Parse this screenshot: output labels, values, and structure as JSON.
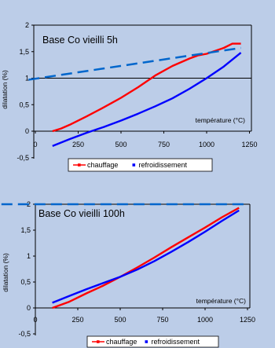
{
  "colors": {
    "background": "#bccde8",
    "heating": "#ff0000",
    "cooling": "#0000ff",
    "trend": "#0066cc",
    "axis": "#000000"
  },
  "chart_data": [
    {
      "type": "line",
      "title": "Base Co vieilli 5h",
      "xlabel": "température (°C)",
      "ylabel": "dilatation (%)",
      "xlim": [
        0,
        1300
      ],
      "ylim": [
        -0.5,
        2
      ],
      "xticks": [
        "0",
        "250",
        "500",
        "750",
        "1000",
        "1250"
      ],
      "yticks": [
        "-0,5",
        "0",
        "0,5",
        "1",
        "1,5",
        "2"
      ],
      "ref_line": 1,
      "legend": [
        "chauffage",
        "refroidissement"
      ],
      "legend_position": "bottom-center",
      "series": [
        {
          "name": "chauffage",
          "x": [
            100,
            150,
            200,
            300,
            400,
            500,
            600,
            700,
            800,
            900,
            950,
            1000,
            1100,
            1150,
            1200
          ],
          "y": [
            0.0,
            0.05,
            0.12,
            0.28,
            0.45,
            0.63,
            0.83,
            1.05,
            1.23,
            1.37,
            1.43,
            1.46,
            1.57,
            1.65,
            1.65
          ]
        },
        {
          "name": "refroidissement",
          "x": [
            100,
            200,
            300,
            400,
            500,
            600,
            700,
            800,
            900,
            1000,
            1100,
            1200
          ],
          "y": [
            -0.28,
            -0.15,
            -0.03,
            0.08,
            0.2,
            0.33,
            0.47,
            0.62,
            0.8,
            1.0,
            1.22,
            1.48
          ]
        },
        {
          "name": "",
          "style": "dashed",
          "x": [
            -40,
            1200
          ],
          "y": [
            0.97,
            1.57
          ]
        }
      ]
    },
    {
      "type": "line",
      "title": "Base Co vieilli 100h",
      "xlabel": "température (°C)",
      "ylabel": "dilatation (%)",
      "xlim": [
        0,
        1250
      ],
      "ylim": [
        -0.5,
        2
      ],
      "xticks": [
        "0",
        "250",
        "500",
        "750",
        "1000",
        "1250"
      ],
      "yticks": [
        "-0,5",
        "0",
        "0,5",
        "1",
        "1,5",
        "2"
      ],
      "legend": [
        "chauffage",
        "refroidissement"
      ],
      "legend_position": "bottom-center",
      "series": [
        {
          "name": "chauffage",
          "x": [
            100,
            200,
            300,
            400,
            500,
            600,
            700,
            800,
            900,
            1000,
            1100,
            1200
          ],
          "y": [
            0.0,
            0.12,
            0.28,
            0.43,
            0.6,
            0.78,
            0.97,
            1.17,
            1.36,
            1.55,
            1.75,
            1.93
          ]
        },
        {
          "name": "refroidissement",
          "x": [
            100,
            200,
            300,
            400,
            500,
            600,
            700,
            800,
            900,
            1000,
            1100,
            1200
          ],
          "y": [
            0.1,
            0.23,
            0.36,
            0.48,
            0.6,
            0.74,
            0.9,
            1.08,
            1.27,
            1.47,
            1.68,
            1.88
          ]
        },
        {
          "name": "",
          "style": "dashed",
          "x": [
            -200,
            1250
          ],
          "y": [
            2.0,
            2.0
          ]
        }
      ]
    }
  ]
}
